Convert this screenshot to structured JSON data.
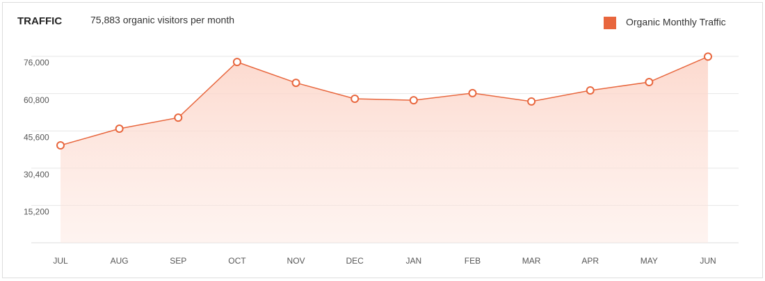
{
  "chart_data": {
    "type": "line",
    "title": "TRAFFIC",
    "subtitle": "75,883 organic visitors per month",
    "categories": [
      "JUL",
      "AUG",
      "SEP",
      "OCT",
      "NOV",
      "DEC",
      "JAN",
      "FEB",
      "MAR",
      "APR",
      "MAY",
      "JUN"
    ],
    "series": [
      {
        "name": "Organic Monthly Traffic",
        "color": "#e8663d",
        "values": [
          39700,
          46500,
          51000,
          73700,
          65200,
          58700,
          58100,
          61000,
          57600,
          62100,
          65500,
          75883
        ]
      }
    ],
    "ylim": [
      0,
      76000
    ],
    "yticks": [
      {
        "value": 15200,
        "label": "15,200"
      },
      {
        "value": 30400,
        "label": "30,400"
      },
      {
        "value": 45600,
        "label": "45,600"
      },
      {
        "value": 60800,
        "label": "60,800"
      },
      {
        "value": 76000,
        "label": "76,000"
      }
    ],
    "grid": true,
    "legend": "top-right"
  }
}
